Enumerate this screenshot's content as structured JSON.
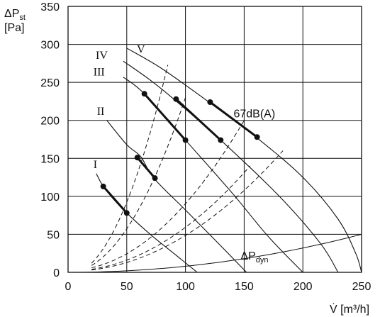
{
  "chart_data": {
    "type": "line",
    "title": "",
    "xlabel": "V̇ [m³/h]",
    "ylabel_line1": "ΔPst",
    "ylabel_line2": "[Pa]",
    "xlim": [
      0,
      250
    ],
    "ylim": [
      0,
      350
    ],
    "x_ticks": [
      0,
      50,
      100,
      150,
      200,
      250
    ],
    "y_ticks": [
      0,
      50,
      100,
      150,
      200,
      250,
      300,
      350
    ],
    "grid": true,
    "series": [
      {
        "name": "I",
        "kind": "fan_curve",
        "points": [
          [
            24,
            130
          ],
          [
            30,
            113
          ],
          [
            40,
            94
          ],
          [
            50,
            78
          ],
          [
            70,
            50
          ],
          [
            90,
            25
          ],
          [
            110,
            0
          ]
        ]
      },
      {
        "name": "II",
        "kind": "fan_curve",
        "points": [
          [
            33,
            200
          ],
          [
            50,
            168
          ],
          [
            62,
            152
          ],
          [
            73,
            124
          ],
          [
            100,
            82
          ],
          [
            130,
            35
          ],
          [
            152,
            0
          ]
        ]
      },
      {
        "name": "III",
        "kind": "fan_curve",
        "points": [
          [
            47,
            257
          ],
          [
            65,
            235
          ],
          [
            100,
            174
          ],
          [
            140,
            104
          ],
          [
            170,
            48
          ],
          [
            200,
            0
          ]
        ]
      },
      {
        "name": "IV",
        "kind": "fan_curve",
        "points": [
          [
            47,
            278
          ],
          [
            70,
            253
          ],
          [
            90,
            228
          ],
          [
            130,
            174
          ],
          [
            180,
            100
          ],
          [
            215,
            38
          ],
          [
            230,
            0
          ]
        ]
      },
      {
        "name": "V",
        "kind": "fan_curve",
        "points": [
          [
            50,
            295
          ],
          [
            80,
            268
          ],
          [
            120,
            224
          ],
          [
            160,
            178
          ],
          [
            200,
            125
          ],
          [
            230,
            70
          ],
          [
            245,
            25
          ],
          [
            250,
            0
          ]
        ]
      }
    ],
    "highlight_segments": [
      {
        "name": "I",
        "from": [
          30,
          113
        ],
        "to": [
          50,
          78
        ]
      },
      {
        "name": "II",
        "from": [
          59,
          151
        ],
        "to": [
          74,
          124
        ]
      },
      {
        "name": "III",
        "from": [
          65,
          235
        ],
        "to": [
          100,
          174
        ]
      },
      {
        "name": "IV",
        "from": [
          92,
          228
        ],
        "to": [
          130,
          174
        ]
      },
      {
        "name": "V",
        "from": [
          121,
          224
        ],
        "to": [
          161,
          178
        ]
      }
    ],
    "system_curves": [
      {
        "points": [
          [
            20,
            12
          ],
          [
            85,
            273
          ]
        ]
      },
      {
        "points": [
          [
            20,
            9
          ],
          [
            100,
            230
          ]
        ]
      },
      {
        "points": [
          [
            20,
            6
          ],
          [
            150,
            200
          ]
        ]
      },
      {
        "points": [
          [
            20,
            4
          ],
          [
            155,
            140
          ]
        ]
      },
      {
        "points": [
          [
            20,
            3
          ],
          [
            183,
            160
          ]
        ]
      }
    ],
    "dynamic_pressure_curve": {
      "name": "ΔPdyn",
      "points": [
        [
          0,
          0
        ],
        [
          250,
          50
        ]
      ]
    },
    "annotation": "67dB(A)"
  }
}
